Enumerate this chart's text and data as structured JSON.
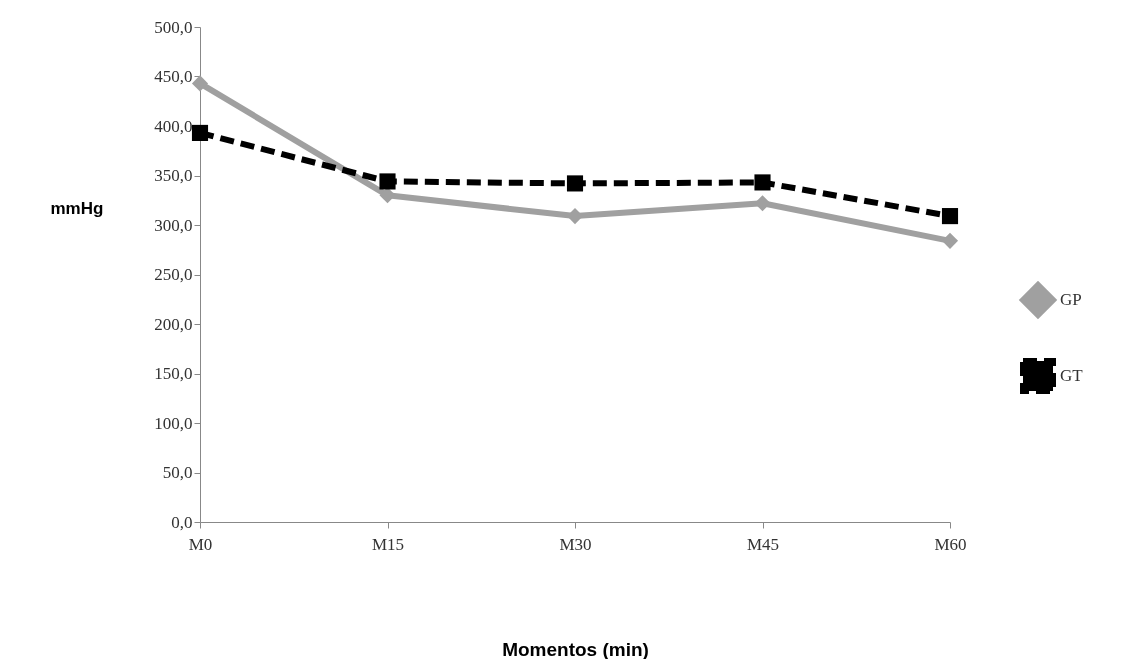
{
  "chart_data": {
    "type": "line",
    "xlabel": "Momentos (min)",
    "ylabel": "mmHg",
    "categories": [
      "M0",
      "M15",
      "M30",
      "M45",
      "M60"
    ],
    "series": [
      {
        "name": "GP",
        "color": "#a0a0a0",
        "values": [
          443,
          330,
          309,
          322,
          284
        ],
        "marker": "diamond",
        "line_style": "solid"
      },
      {
        "name": "GT",
        "color": "#000000",
        "values": [
          393,
          344,
          342,
          343,
          309
        ],
        "marker": "square",
        "line_style": "dashed"
      }
    ],
    "ylim": [
      0,
      500
    ],
    "yticks": [
      {
        "value": 0,
        "label": "0,0"
      },
      {
        "value": 50,
        "label": "50,0"
      },
      {
        "value": 100,
        "label": "100,0"
      },
      {
        "value": 150,
        "label": "150,0"
      },
      {
        "value": 200,
        "label": "200,0"
      },
      {
        "value": 250,
        "label": "250,0"
      },
      {
        "value": 300,
        "label": "300,0"
      },
      {
        "value": 350,
        "label": "350,0"
      },
      {
        "value": 400,
        "label": "400,0"
      },
      {
        "value": 450,
        "label": "450,0"
      },
      {
        "value": 500,
        "label": "500,0"
      }
    ],
    "grid": false,
    "legend": "right"
  }
}
